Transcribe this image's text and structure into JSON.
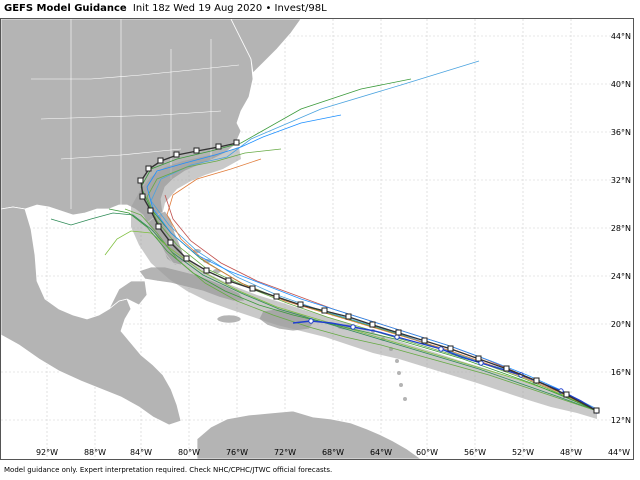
{
  "header": {
    "title": "GEFS Model Guidance",
    "subtitle": "Init 18z Wed 19 Aug 2020 • Invest/98L"
  },
  "footer": {
    "disclaimer": "Model guidance only. Expert interpretation required. Check NHC/CPHC/JTWC official forecasts."
  },
  "map": {
    "lat_labels": [
      "44°N",
      "40°N",
      "36°N",
      "32°N",
      "28°N",
      "24°N",
      "20°N",
      "16°N",
      "12°N"
    ],
    "lon_labels": [
      "92°W",
      "88°W",
      "84°W",
      "80°W",
      "76°W",
      "72°W",
      "68°W",
      "64°W",
      "60°W",
      "56°W",
      "52°W",
      "48°W",
      "44°W"
    ],
    "land_color": "#b4b4b4",
    "ocean_color": "#ffffff",
    "border_color": "#ffffff"
  },
  "tracks": {
    "mean_track_color": "#333333",
    "blue_track_color": "#1f3fcf",
    "member_colors": [
      "#3a9a3a",
      "#66aa44",
      "#2e8b57",
      "#4aa3df",
      "#e07b39",
      "#c0504d",
      "#7fbf3f",
      "#1e90ff"
    ]
  }
}
